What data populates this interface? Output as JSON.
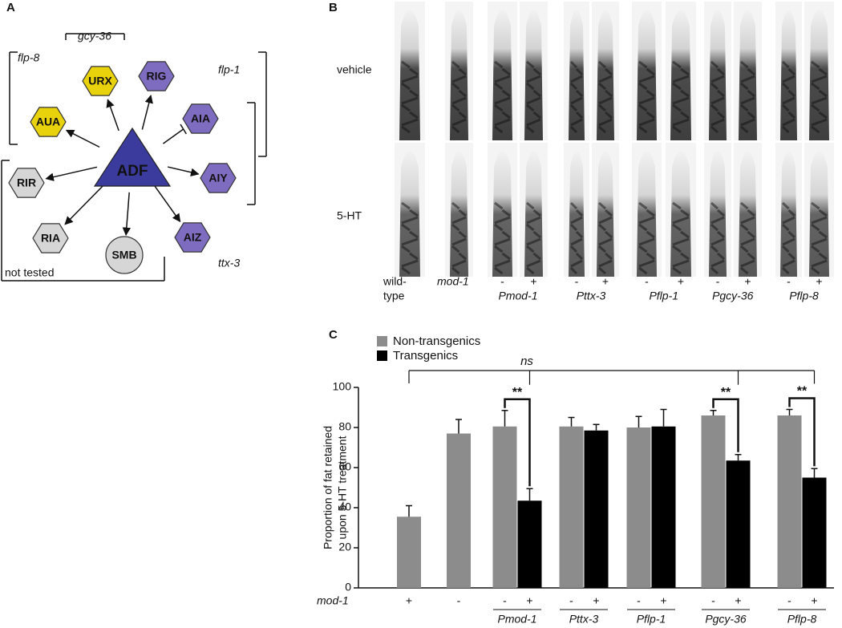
{
  "panel_a": {
    "label": "A",
    "center": "ADF",
    "nodes": [
      "URX",
      "RIG",
      "AUA",
      "AIA",
      "RIR",
      "AIY",
      "RIA",
      "SMB",
      "AIZ"
    ],
    "groups": [
      "gcy-36",
      "flp-8",
      "flp-1",
      "ttx-3",
      "not tested"
    ]
  },
  "panel_b": {
    "label": "B",
    "rows": [
      "vehicle",
      "5-HT"
    ],
    "columns": [
      [
        "wild-",
        "type"
      ],
      [
        "mod-1"
      ]
    ],
    "groups": [
      {
        "label": "Pmod-1",
        "signs": [
          "-",
          "+"
        ]
      },
      {
        "label": "Pttx-3",
        "signs": [
          "-",
          "+"
        ]
      },
      {
        "label": "Pflp-1",
        "signs": [
          "-",
          "+"
        ]
      },
      {
        "label": "Pgcy-36",
        "signs": [
          "-",
          "+"
        ]
      },
      {
        "label": "Pflp-8",
        "signs": [
          "-",
          "+"
        ]
      }
    ]
  },
  "chart_data": {
    "type": "bar",
    "panel_label": "C",
    "ylabel": [
      "Proportion of fat retained",
      "upon 5-HT treatment"
    ],
    "categories": [
      null,
      null,
      "Pmod-1",
      "Pttx-3",
      "Pflp-1",
      "Pgcy-36",
      "Pflp-8"
    ],
    "x_row_label": "mod-1",
    "series": [
      {
        "name": "Non-transgenics",
        "color": "#8c8c8c",
        "values": [
          35.5,
          77,
          80.5,
          80.5,
          80,
          86,
          86
        ],
        "errors": [
          5.5,
          7,
          8,
          4.5,
          5.5,
          2.5,
          3
        ],
        "signs": [
          "+",
          "-",
          "-",
          "-",
          "-",
          "-",
          "-"
        ]
      },
      {
        "name": "Transgenics",
        "color": "#000000",
        "values": [
          null,
          null,
          43.5,
          78.5,
          80.5,
          63.5,
          55
        ],
        "errors": [
          null,
          null,
          6,
          3,
          8.5,
          3,
          4.5
        ],
        "signs": [
          null,
          null,
          "+",
          "+",
          "+",
          "+",
          "+"
        ]
      }
    ],
    "ylim": [
      0,
      100
    ],
    "yticks": [
      0,
      20,
      40,
      60,
      80,
      100
    ],
    "grid": false,
    "legend": "top-left",
    "annotations": {
      "ns": "ns",
      "significance": [
        "**",
        "**",
        "**"
      ]
    }
  }
}
